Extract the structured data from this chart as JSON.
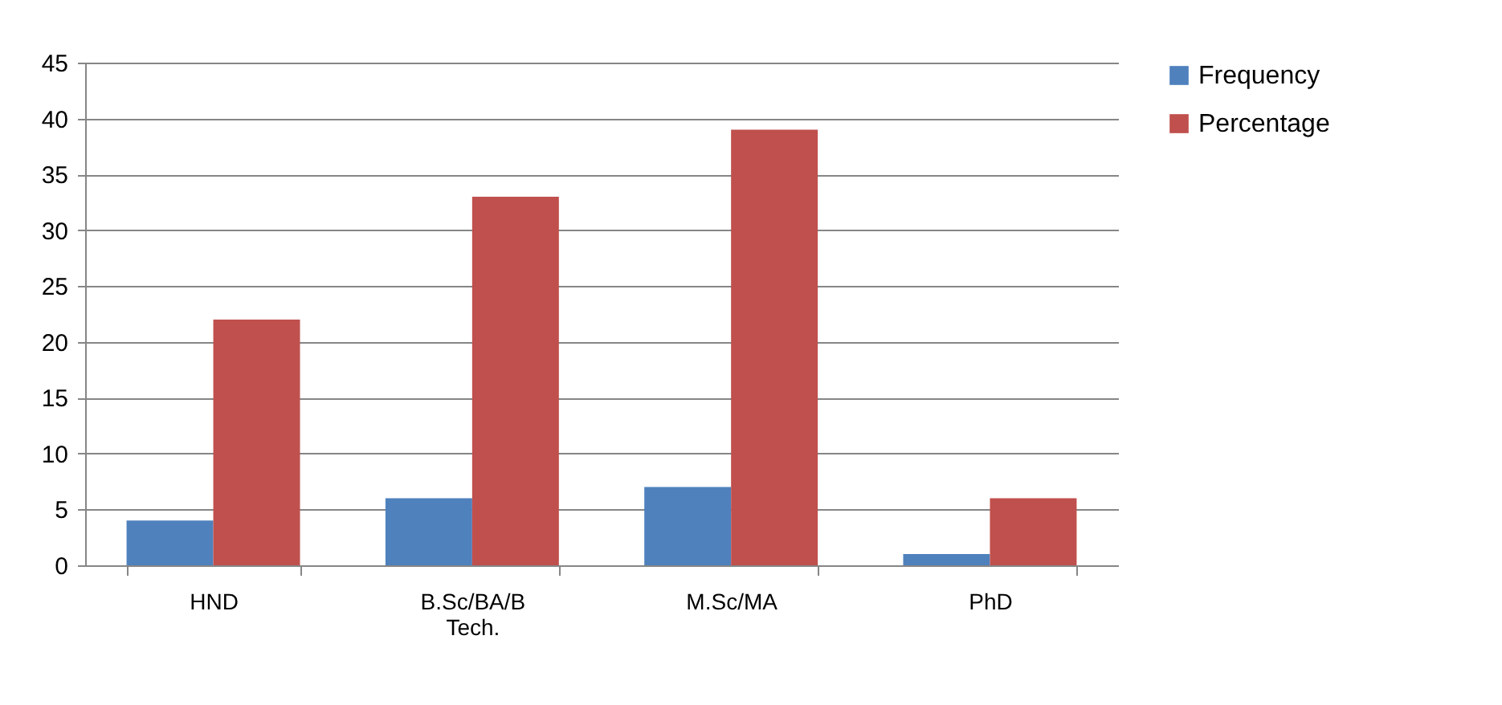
{
  "chart_data": {
    "type": "bar",
    "categories": [
      "HND",
      "B.Sc/BA/B Tech.",
      "M.Sc/MA",
      "PhD"
    ],
    "series": [
      {
        "name": "Frequency",
        "color": "#4f81bd",
        "values": [
          4,
          6,
          7,
          1
        ]
      },
      {
        "name": "Percentage",
        "color": "#c0504d",
        "values": [
          22,
          33,
          39,
          6
        ]
      }
    ],
    "ylim": [
      0,
      45
    ],
    "yticks": [
      0,
      5,
      10,
      15,
      20,
      25,
      30,
      35,
      40,
      45
    ],
    "grid": "y",
    "legend": "right"
  }
}
